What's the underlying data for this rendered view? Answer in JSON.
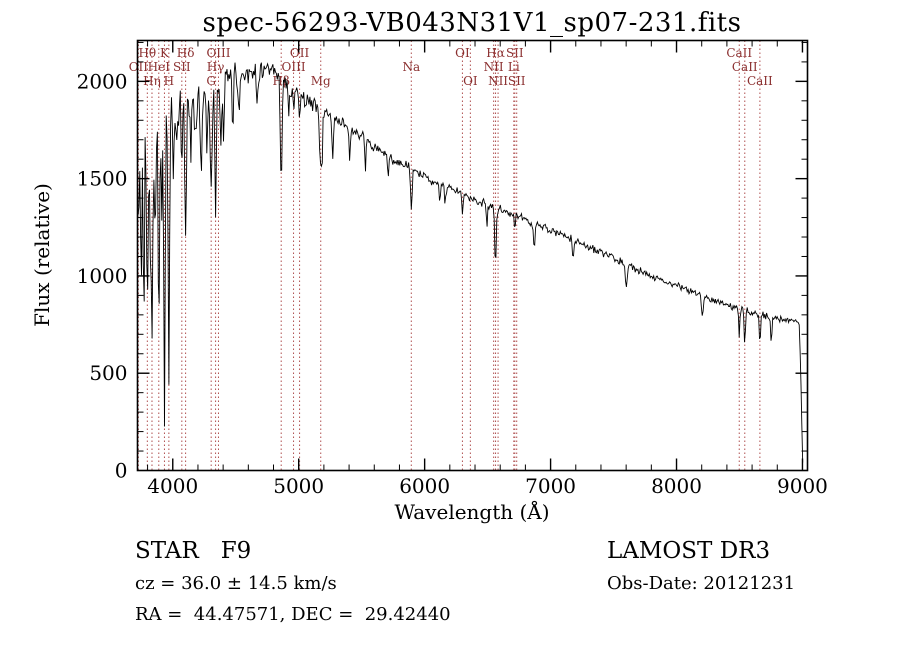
{
  "annotations": {
    "class_label": "STAR   F9",
    "cz": "cz = 36.0 ± 14.5 km/s",
    "radec": "RA =  44.47571, DEC =  29.42440",
    "survey": "LAMOST DR3",
    "obs_date": "Obs-Date: 20121231"
  },
  "chart_data": {
    "type": "line",
    "title": "spec-56293-VB043N31V1_sp07-231.fits",
    "xlabel": "Wavelength (Å)",
    "ylabel": "Flux (relative)",
    "xlim": [
      3720,
      9040
    ],
    "ylim": [
      0,
      2210
    ],
    "xticks": [
      4000,
      5000,
      6000,
      7000,
      8000,
      9000
    ],
    "yticks": [
      0,
      500,
      1000,
      1500,
      2000
    ],
    "x_minor_step": 200,
    "y_minor_step": 100,
    "grid": false,
    "legend": "none",
    "spectrum_color": "#000000",
    "marker_line_color": "#b05050",
    "marker_label_color": "#8b3030",
    "line_markers": [
      {
        "label": "OII",
        "wavelength": 3727,
        "row": 2
      },
      {
        "label": "Hθ",
        "wavelength": 3798,
        "row": 1
      },
      {
        "label": "Hη",
        "wavelength": 3835,
        "row": 3
      },
      {
        "label": "HeI",
        "wavelength": 3889,
        "row": 2
      },
      {
        "label": "K",
        "wavelength": 3934,
        "row": 1
      },
      {
        "label": "H",
        "wavelength": 3969,
        "row": 3
      },
      {
        "label": "SII",
        "wavelength": 4072,
        "row": 2
      },
      {
        "label": "Hδ",
        "wavelength": 4102,
        "row": 1
      },
      {
        "label": "G",
        "wavelength": 4305,
        "row": 3
      },
      {
        "label": "Hγ",
        "wavelength": 4340,
        "row": 2
      },
      {
        "label": "OIII",
        "wavelength": 4363,
        "row": 1
      },
      {
        "label": "Hβ",
        "wavelength": 4861,
        "row": 3
      },
      {
        "label": "OIII",
        "wavelength": 4959,
        "row": 2
      },
      {
        "label": "OII",
        "wavelength": 5007,
        "row": 1
      },
      {
        "label": "Mg",
        "wavelength": 5175,
        "row": 3
      },
      {
        "label": "Na",
        "wavelength": 5894,
        "row": 2
      },
      {
        "label": "OI",
        "wavelength": 6300,
        "row": 1
      },
      {
        "label": "OI",
        "wavelength": 6363,
        "row": 3
      },
      {
        "label": "NII",
        "wavelength": 6548,
        "row": 2
      },
      {
        "label": "Hα",
        "wavelength": 6563,
        "row": 1
      },
      {
        "label": "NII",
        "wavelength": 6583,
        "row": 3
      },
      {
        "label": "Li",
        "wavelength": 6708,
        "row": 2
      },
      {
        "label": "SII",
        "wavelength": 6716,
        "row": 1
      },
      {
        "label": "SII",
        "wavelength": 6731,
        "row": 3
      },
      {
        "label": "CaII",
        "wavelength": 8498,
        "row": 1
      },
      {
        "label": "CaII",
        "wavelength": 8542,
        "row": 2
      },
      {
        "label": "CaII",
        "wavelength": 8662,
        "row": 3
      }
    ],
    "spectrum": {
      "start": 3724,
      "end": 9005,
      "step": 7,
      "seed": 42,
      "continuum": [
        [
          3724,
          1820
        ],
        [
          3800,
          1800
        ],
        [
          3900,
          1820
        ],
        [
          4000,
          1850
        ],
        [
          4100,
          1880
        ],
        [
          4200,
          1910
        ],
        [
          4300,
          1940
        ],
        [
          4400,
          1990
        ],
        [
          4500,
          2030
        ],
        [
          4600,
          2055
        ],
        [
          4700,
          2060
        ],
        [
          4800,
          2040
        ],
        [
          4900,
          1990
        ],
        [
          5000,
          1930
        ],
        [
          5100,
          1890
        ],
        [
          5200,
          1850
        ],
        [
          5300,
          1810
        ],
        [
          5400,
          1760
        ],
        [
          5500,
          1710
        ],
        [
          5600,
          1660
        ],
        [
          5700,
          1620
        ],
        [
          5800,
          1580
        ],
        [
          5900,
          1545
        ],
        [
          6000,
          1510
        ],
        [
          6100,
          1480
        ],
        [
          6200,
          1450
        ],
        [
          6300,
          1420
        ],
        [
          6400,
          1390
        ],
        [
          6500,
          1365
        ],
        [
          6600,
          1340
        ],
        [
          6700,
          1315
        ],
        [
          6800,
          1290
        ],
        [
          6900,
          1260
        ],
        [
          7000,
          1235
        ],
        [
          7100,
          1205
        ],
        [
          7200,
          1180
        ],
        [
          7300,
          1150
        ],
        [
          7400,
          1120
        ],
        [
          7500,
          1090
        ],
        [
          7600,
          1060
        ],
        [
          7700,
          1030
        ],
        [
          7800,
          1000
        ],
        [
          7900,
          975
        ],
        [
          8000,
          950
        ],
        [
          8100,
          925
        ],
        [
          8200,
          900
        ],
        [
          8300,
          875
        ],
        [
          8400,
          850
        ],
        [
          8500,
          828
        ],
        [
          8600,
          810
        ],
        [
          8700,
          795
        ],
        [
          8800,
          782
        ],
        [
          8900,
          772
        ],
        [
          8950,
          768
        ],
        [
          8975,
          755
        ],
        [
          8990,
          400
        ],
        [
          9000,
          60
        ],
        [
          9005,
          15
        ]
      ],
      "absorption_lines": [
        [
          3728,
          650,
          6
        ],
        [
          3750,
          950,
          5
        ],
        [
          3770,
          1050,
          5
        ],
        [
          3798,
          900,
          6
        ],
        [
          3820,
          550,
          5
        ],
        [
          3835,
          1200,
          6
        ],
        [
          3860,
          650,
          5
        ],
        [
          3889,
          1000,
          6
        ],
        [
          3912,
          550,
          5
        ],
        [
          3934,
          1450,
          6
        ],
        [
          3969,
          1380,
          6
        ],
        [
          4005,
          350,
          5
        ],
        [
          4030,
          320,
          5
        ],
        [
          4072,
          280,
          5
        ],
        [
          4102,
          650,
          6
        ],
        [
          4144,
          280,
          5
        ],
        [
          4180,
          200,
          5
        ],
        [
          4226,
          380,
          6
        ],
        [
          4271,
          260,
          5
        ],
        [
          4305,
          420,
          8
        ],
        [
          4340,
          660,
          6
        ],
        [
          4383,
          360,
          6
        ],
        [
          4405,
          250,
          5
        ],
        [
          4476,
          220,
          5
        ],
        [
          4528,
          210,
          6
        ],
        [
          4668,
          200,
          6
        ],
        [
          4861,
          530,
          7
        ],
        [
          4921,
          160,
          5
        ],
        [
          4958,
          100,
          4
        ],
        [
          5007,
          110,
          4
        ],
        [
          5169,
          260,
          5
        ],
        [
          5183,
          330,
          6
        ],
        [
          5270,
          230,
          6
        ],
        [
          5406,
          160,
          5
        ],
        [
          5528,
          140,
          5
        ],
        [
          5711,
          110,
          5
        ],
        [
          5894,
          210,
          6
        ],
        [
          6122,
          100,
          5
        ],
        [
          6163,
          90,
          5
        ],
        [
          6300,
          80,
          4
        ],
        [
          6495,
          110,
          5
        ],
        [
          6563,
          290,
          6
        ],
        [
          6717,
          80,
          4
        ],
        [
          6870,
          130,
          6
        ],
        [
          7180,
          90,
          6
        ],
        [
          7600,
          130,
          7
        ],
        [
          8205,
          100,
          6
        ],
        [
          8498,
          160,
          4
        ],
        [
          8542,
          190,
          4
        ],
        [
          8662,
          180,
          4
        ],
        [
          8752,
          120,
          5
        ]
      ],
      "noise": [
        [
          3724,
          210
        ],
        [
          3800,
          200
        ],
        [
          3900,
          185
        ],
        [
          4000,
          160
        ],
        [
          4100,
          135
        ],
        [
          4200,
          115
        ],
        [
          4300,
          100
        ],
        [
          4400,
          90
        ],
        [
          4600,
          75
        ],
        [
          4800,
          62
        ],
        [
          5000,
          52
        ],
        [
          5300,
          42
        ],
        [
          5600,
          36
        ],
        [
          6000,
          32
        ],
        [
          6500,
          28
        ],
        [
          7000,
          25
        ],
        [
          7600,
          22
        ],
        [
          8200,
          20
        ],
        [
          8700,
          22
        ],
        [
          8960,
          18
        ],
        [
          9005,
          10
        ]
      ]
    }
  }
}
